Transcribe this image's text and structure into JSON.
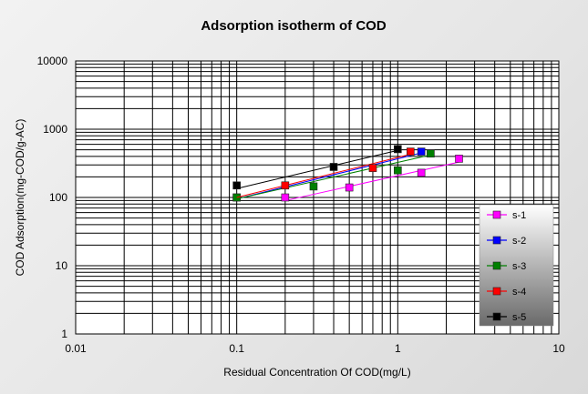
{
  "chart_data": {
    "type": "scatter",
    "title": "Adsorption isotherm of COD",
    "xlabel": "Residual Concentration Of COD(mg/L)",
    "ylabel": "COD Adsorption(mg-COD/g-AC)",
    "x_scale": "log",
    "y_scale": "log",
    "xlim": [
      0.01,
      10
    ],
    "ylim": [
      1,
      10000
    ],
    "x_ticks": [
      "0.01",
      "0.1",
      "1",
      "10"
    ],
    "y_ticks": [
      "1",
      "10",
      "100",
      "1000",
      "10000"
    ],
    "grid": true,
    "legend_position": "right",
    "series": [
      {
        "name": "s-1",
        "color": "#ff00ff",
        "x": [
          0.2,
          0.5,
          1.4,
          2.4
        ],
        "y": [
          100,
          140,
          230,
          370
        ],
        "fit_x": [
          0.2,
          2.4
        ],
        "fit_y": [
          90,
          330
        ]
      },
      {
        "name": "s-2",
        "color": "#0000ff",
        "x": [
          0.1,
          1.4
        ],
        "y": [
          100,
          470
        ],
        "fit_x": [
          0.1,
          1.4
        ],
        "fit_y": [
          95,
          450
        ]
      },
      {
        "name": "s-3",
        "color": "#008000",
        "x": [
          0.1,
          0.3,
          1.0,
          1.6
        ],
        "y": [
          100,
          145,
          250,
          440
        ],
        "fit_x": [
          0.1,
          1.6
        ],
        "fit_y": [
          95,
          420
        ]
      },
      {
        "name": "s-4",
        "color": "#ff0000",
        "x": [
          0.2,
          0.7,
          1.2
        ],
        "y": [
          150,
          270,
          470
        ],
        "fit_x": [
          0.1,
          1.2
        ],
        "fit_y": [
          100,
          430
        ]
      },
      {
        "name": "s-5",
        "color": "#000000",
        "x": [
          0.1,
          0.4,
          1.0
        ],
        "y": [
          150,
          280,
          510
        ],
        "fit_x": [
          0.1,
          1.0
        ],
        "fit_y": [
          135,
          490
        ]
      }
    ]
  }
}
